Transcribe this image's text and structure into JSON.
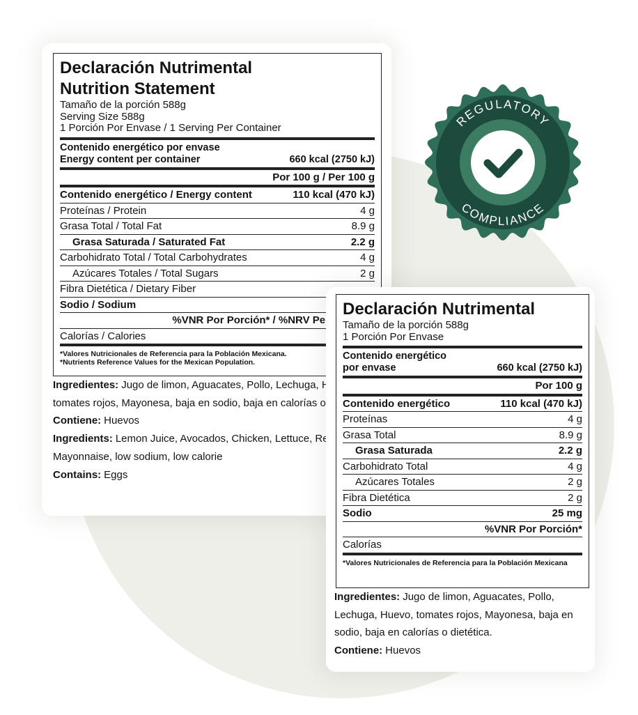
{
  "badge": {
    "top": "REGULATORY",
    "bottom": "COMPLIANCE"
  },
  "label_1": {
    "title": [
      "Declaración Nutrimental",
      "Nutrition Statement"
    ],
    "serving": [
      "Tamaño de la porción 588g",
      "Serving Size 588g",
      "1 Porción Por Envase / 1 Serving Per Container"
    ],
    "energy": {
      "label": [
        "Contenido energético por envase",
        "Energy content per container"
      ],
      "value": "660 kcal (2750 kJ)"
    },
    "per_100": "Por 100 g / Per 100 g",
    "rows": [
      {
        "label": "Contenido energético / Energy content",
        "value": "110 kcal (470 kJ)"
      },
      {
        "label": "Proteínas / Protein",
        "value": "4 g"
      },
      {
        "label": "Grasa Total / Total Fat",
        "value": "8.9 g"
      },
      {
        "label": "Grasa Saturada / Saturated Fat",
        "value": "2.2 g"
      },
      {
        "label": "Carbohidrato Total / Total Carbohydrates",
        "value": "4 g"
      },
      {
        "label": "Azúcares Totales / Total Sugars",
        "value": "2 g"
      },
      {
        "label": "Fibra Dietética / Dietary Fiber"
      },
      {
        "label": "Sodio / Sodium"
      }
    ],
    "vnr": "%VNR Por Porción* / %NRV Per Serving*",
    "calories": "Calorías / Calories",
    "footnotes": [
      "*Valores Nutricionales de Referencia para la Población Mexicana.",
      "*Nutrients Reference Values for the Mexican Population."
    ],
    "ingredients": [
      {
        "label": "Ingredientes:",
        "text": "Jugo de limon, Aguacates, Pollo, Lechuga, Huevo, tomates rojos, Mayonesa, baja en sodio, baja en calorías o dietética."
      },
      {
        "label": "Contiene:",
        "text": "Huevos"
      },
      {
        "label": "Ingredients:",
        "text": "Lemon Juice, Avocados, Chicken, Lettuce, Red Tomatoes, Mayonnaise, low sodium, low calorie"
      },
      {
        "label": "Contains:",
        "text": "Eggs"
      }
    ]
  },
  "label_2": {
    "title": [
      "Declaración Nutrimental"
    ],
    "serving": [
      "Tamaño de la porción 588g",
      "1 Porción Por Envase"
    ],
    "energy": {
      "label": [
        "Contenido energético",
        "por envase"
      ],
      "value": "660 kcal (2750 kJ)"
    },
    "per_100": "Por 100 g",
    "rows": [
      {
        "label": "Contenido energético",
        "value": "110 kcal (470 kJ)"
      },
      {
        "label": "Proteínas",
        "value": "4 g"
      },
      {
        "label": "Grasa Total",
        "value": "8.9 g"
      },
      {
        "label": "Grasa Saturada",
        "value": "2.2 g"
      },
      {
        "label": "Carbohidrato Total",
        "value": "4 g"
      },
      {
        "label": "Azúcares Totales",
        "value": "2 g"
      },
      {
        "label": "Fibra Dietética",
        "value": "2 g"
      },
      {
        "label": "Sodio",
        "value": "25 mg"
      }
    ],
    "vnr": "%VNR Por Porción*",
    "calories": "Calorías",
    "footnotes": [
      "*Valores Nutricionales de Referencia para la Población Mexicana"
    ],
    "ingredients": [
      {
        "label": "Ingredientes:",
        "text": "Jugo de limon, Aguacates, Pollo, Lechuga, Huevo, tomates rojos, Mayonesa, baja en sodio, baja en calorías o dietética."
      },
      {
        "label": "Contiene:",
        "text": "Huevos"
      }
    ]
  }
}
